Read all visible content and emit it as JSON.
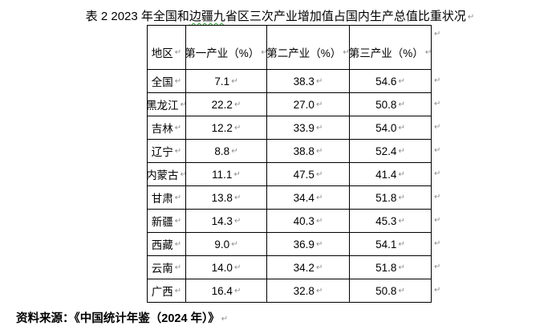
{
  "title": {
    "pre": "表 2 2023 年全国和",
    "flagged": "边疆九",
    "post": "省区三次产业增加值占国内生产总值比重状况",
    "paragraph_mark": "↵"
  },
  "table": {
    "headers": [
      "地区",
      "第一产业（%）",
      "第二产业（%）",
      "第三产业（%）"
    ],
    "rows": [
      {
        "region": "全国",
        "values": [
          "7.1",
          "38.3",
          "54.6"
        ]
      },
      {
        "region": "黑龙江",
        "values": [
          "22.2",
          "27.0",
          "50.8"
        ]
      },
      {
        "region": "吉林",
        "values": [
          "12.2",
          "33.9",
          "54.0"
        ]
      },
      {
        "region": "辽宁",
        "values": [
          "8.8",
          "38.8",
          "52.4"
        ]
      },
      {
        "region": "内蒙古",
        "values": [
          "11.1",
          "47.5",
          "41.4"
        ]
      },
      {
        "region": "甘肃",
        "values": [
          "13.8",
          "34.4",
          "51.8"
        ]
      },
      {
        "region": "新疆",
        "values": [
          "14.3",
          "40.3",
          "45.3"
        ]
      },
      {
        "region": "西藏",
        "values": [
          "9.0",
          "36.9",
          "54.1"
        ]
      },
      {
        "region": "云南",
        "values": [
          "14.0",
          "34.2",
          "51.8"
        ]
      },
      {
        "region": "广西",
        "values": [
          "16.4",
          "32.8",
          "50.8"
        ]
      }
    ]
  },
  "source": {
    "text": "资料来源：《中国统计年鉴（2024 年）》",
    "paragraph_mark": "↵"
  },
  "marks": {
    "cell_end": "↵",
    "row_end": "↵"
  },
  "colors": {
    "text": "#000000",
    "border": "#000000",
    "formatting_mark": "#8c8c8c",
    "spellcheck_underline": "#1f9a1f",
    "background": "#ffffff"
  }
}
